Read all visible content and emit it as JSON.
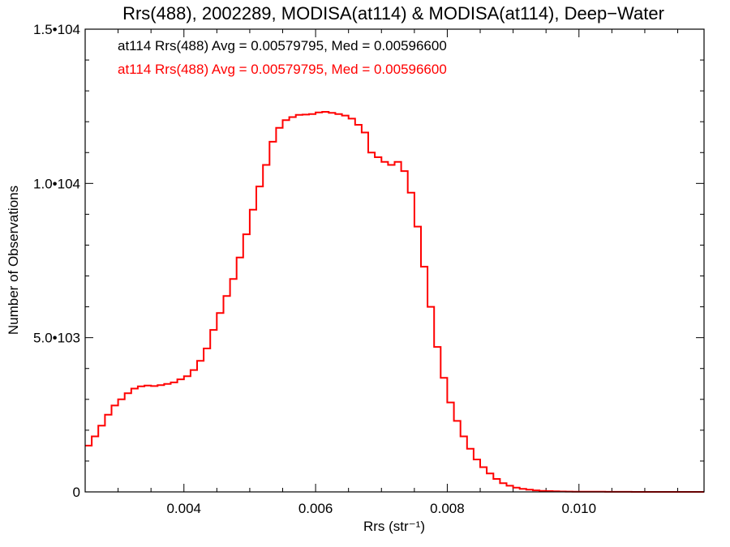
{
  "chart_data": {
    "type": "line",
    "title": "Rrs(488), 2002289, MODISA(at114) & MODISA(at114), Deep−Water",
    "xlabel": "Rrs (str⁻¹)",
    "ylabel": "Number of Observations",
    "xlim": [
      0.0025,
      0.0119
    ],
    "ylim": [
      0,
      15000
    ],
    "x_ticks": [
      {
        "value": 0.004,
        "label": "0.004"
      },
      {
        "value": 0.006,
        "label": "0.006"
      },
      {
        "value": 0.008,
        "label": "0.008"
      },
      {
        "value": 0.01,
        "label": "0.010"
      }
    ],
    "y_ticks": [
      {
        "value": 0,
        "label": "0"
      },
      {
        "value": 5000,
        "label": "5.0•103"
      },
      {
        "value": 10000,
        "label": "1.0•104"
      },
      {
        "value": 15000,
        "label": "1.5•104"
      }
    ],
    "grid": false,
    "annotations": [
      {
        "text": "at114 Rrs(488) Avg = 0.00579795, Med = 0.00596600",
        "color": "#000000"
      },
      {
        "text": "at114 Rrs(488) Avg = 0.00579795, Med = 0.00596600",
        "color": "#ff0000"
      }
    ],
    "series": [
      {
        "color": "#ff0000",
        "x": [
          0.0025,
          0.0026,
          0.0027,
          0.0028,
          0.0029,
          0.003,
          0.0031,
          0.0032,
          0.0033,
          0.0034,
          0.0035,
          0.0036,
          0.0037,
          0.0038,
          0.0039,
          0.004,
          0.0041,
          0.0042,
          0.0043,
          0.0044,
          0.0045,
          0.0046,
          0.0047,
          0.0048,
          0.0049,
          0.005,
          0.0051,
          0.0052,
          0.0053,
          0.0054,
          0.0055,
          0.0056,
          0.0057,
          0.0058,
          0.0059,
          0.006,
          0.0061,
          0.0062,
          0.0063,
          0.0064,
          0.0065,
          0.0066,
          0.0067,
          0.0068,
          0.0069,
          0.007,
          0.0071,
          0.0072,
          0.0073,
          0.0074,
          0.0075,
          0.0076,
          0.0077,
          0.0078,
          0.0079,
          0.008,
          0.0081,
          0.0082,
          0.0083,
          0.0084,
          0.0085,
          0.0086,
          0.0087,
          0.0088,
          0.0089,
          0.009,
          0.0091,
          0.0092,
          0.0093,
          0.0094,
          0.0095,
          0.0096,
          0.0097,
          0.0098,
          0.0099,
          0.01,
          0.0102,
          0.0104,
          0.0106,
          0.0108,
          0.011,
          0.0112,
          0.0114,
          0.0116,
          0.0118,
          0.0119
        ],
        "y": [
          1500,
          1800,
          2150,
          2500,
          2800,
          3000,
          3200,
          3350,
          3420,
          3450,
          3430,
          3460,
          3500,
          3550,
          3650,
          3750,
          3950,
          4250,
          4650,
          5250,
          5800,
          6350,
          6900,
          7600,
          8350,
          9150,
          9900,
          10600,
          11350,
          11800,
          12050,
          12150,
          12220,
          12230,
          12250,
          12300,
          12320,
          12290,
          12250,
          12200,
          12100,
          11900,
          11650,
          11000,
          10850,
          10700,
          10600,
          10700,
          10400,
          9700,
          8600,
          7300,
          6000,
          4700,
          3700,
          2900,
          2300,
          1800,
          1400,
          1050,
          800,
          600,
          420,
          280,
          200,
          140,
          100,
          70,
          50,
          35,
          25,
          18,
          14,
          10,
          8,
          6,
          4,
          3,
          2,
          1,
          1,
          0,
          0,
          0,
          0,
          0
        ]
      }
    ]
  }
}
